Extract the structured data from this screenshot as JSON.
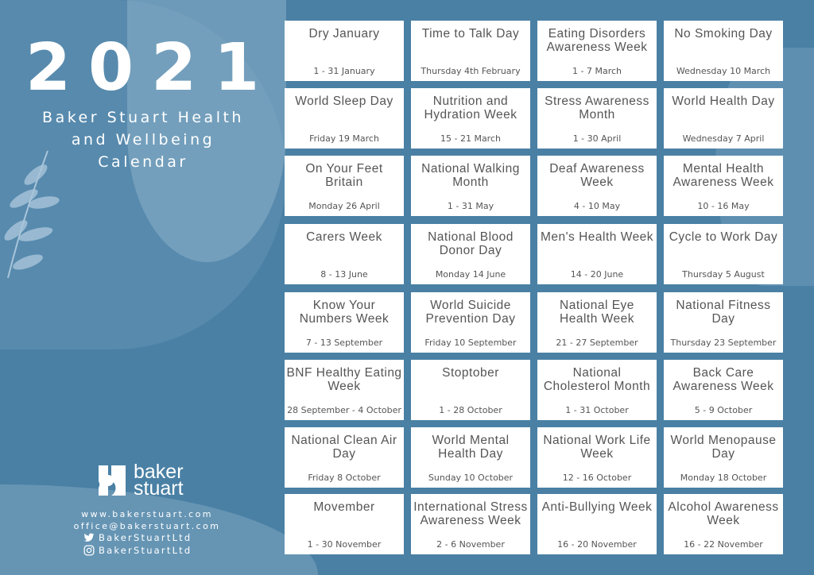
{
  "header": {
    "year": "2021",
    "subtitle_line1": "Baker Stuart Health",
    "subtitle_line2": "and Wellbeing",
    "subtitle_line3": "Calendar"
  },
  "logo": {
    "line1": "baker",
    "line2": "stuart"
  },
  "contact": {
    "website": "www.bakerstuart.com",
    "email": "office@bakerstuart.com",
    "twitter": "BakerStuartLtd",
    "instagram": "BakerStuartLtd"
  },
  "colors": {
    "background": "#4a80a4",
    "card": "#ffffff",
    "text": "#555555"
  },
  "events": [
    {
      "title": "Dry January",
      "date": "1 - 31 January"
    },
    {
      "title": "Time to Talk Day",
      "date": "Thursday 4th February"
    },
    {
      "title": "Eating Disorders Awareness Week",
      "date": "1 - 7 March"
    },
    {
      "title": "No Smoking Day",
      "date": "Wednesday 10 March"
    },
    {
      "title": "World Sleep Day",
      "date": "Friday 19 March"
    },
    {
      "title": "Nutrition and Hydration Week",
      "date": "15 - 21 March"
    },
    {
      "title": "Stress Awareness Month",
      "date": "1 - 30 April"
    },
    {
      "title": "World Health Day",
      "date": "Wednesday 7 April"
    },
    {
      "title": "On Your Feet Britain",
      "date": "Monday 26 April"
    },
    {
      "title": "National Walking Month",
      "date": "1 - 31 May"
    },
    {
      "title": "Deaf Awareness Week",
      "date": "4 - 10 May"
    },
    {
      "title": "Mental Health Awareness Week",
      "date": "10 - 16 May"
    },
    {
      "title": "Carers Week",
      "date": "8 - 13 June"
    },
    {
      "title": "National Blood Donor Day",
      "date": "Monday 14 June"
    },
    {
      "title": "Men's Health Week",
      "date": "14 - 20 June"
    },
    {
      "title": "Cycle to Work Day",
      "date": "Thursday 5 August"
    },
    {
      "title": "Know Your Numbers Week",
      "date": "7 - 13 September"
    },
    {
      "title": "World Suicide Prevention Day",
      "date": "Friday 10 September"
    },
    {
      "title": "National Eye Health Week",
      "date": "21 - 27 September"
    },
    {
      "title": "National Fitness Day",
      "date": "Thursday 23 September"
    },
    {
      "title": "BNF Healthy Eating Week",
      "date": "28 September - 4 October"
    },
    {
      "title": "Stoptober",
      "date": "1 - 28 October"
    },
    {
      "title": "National Cholesterol Month",
      "date": "1 - 31 October"
    },
    {
      "title": "Back Care Awareness Week",
      "date": "5 - 9 October"
    },
    {
      "title": "National Clean Air Day",
      "date": "Friday 8 October"
    },
    {
      "title": "World Mental Health Day",
      "date": "Sunday 10 October"
    },
    {
      "title": "National Work Life Week",
      "date": "12 - 16 October"
    },
    {
      "title": "World Menopause Day",
      "date": "Monday 18 October"
    },
    {
      "title": "Movember",
      "date": "1 - 30 November"
    },
    {
      "title": "International Stress Awareness Week",
      "date": "2 - 6 November"
    },
    {
      "title": "Anti-Bullying Week",
      "date": "16 - 20 November"
    },
    {
      "title": "Alcohol Awareness Week",
      "date": "16 - 22 November"
    }
  ]
}
